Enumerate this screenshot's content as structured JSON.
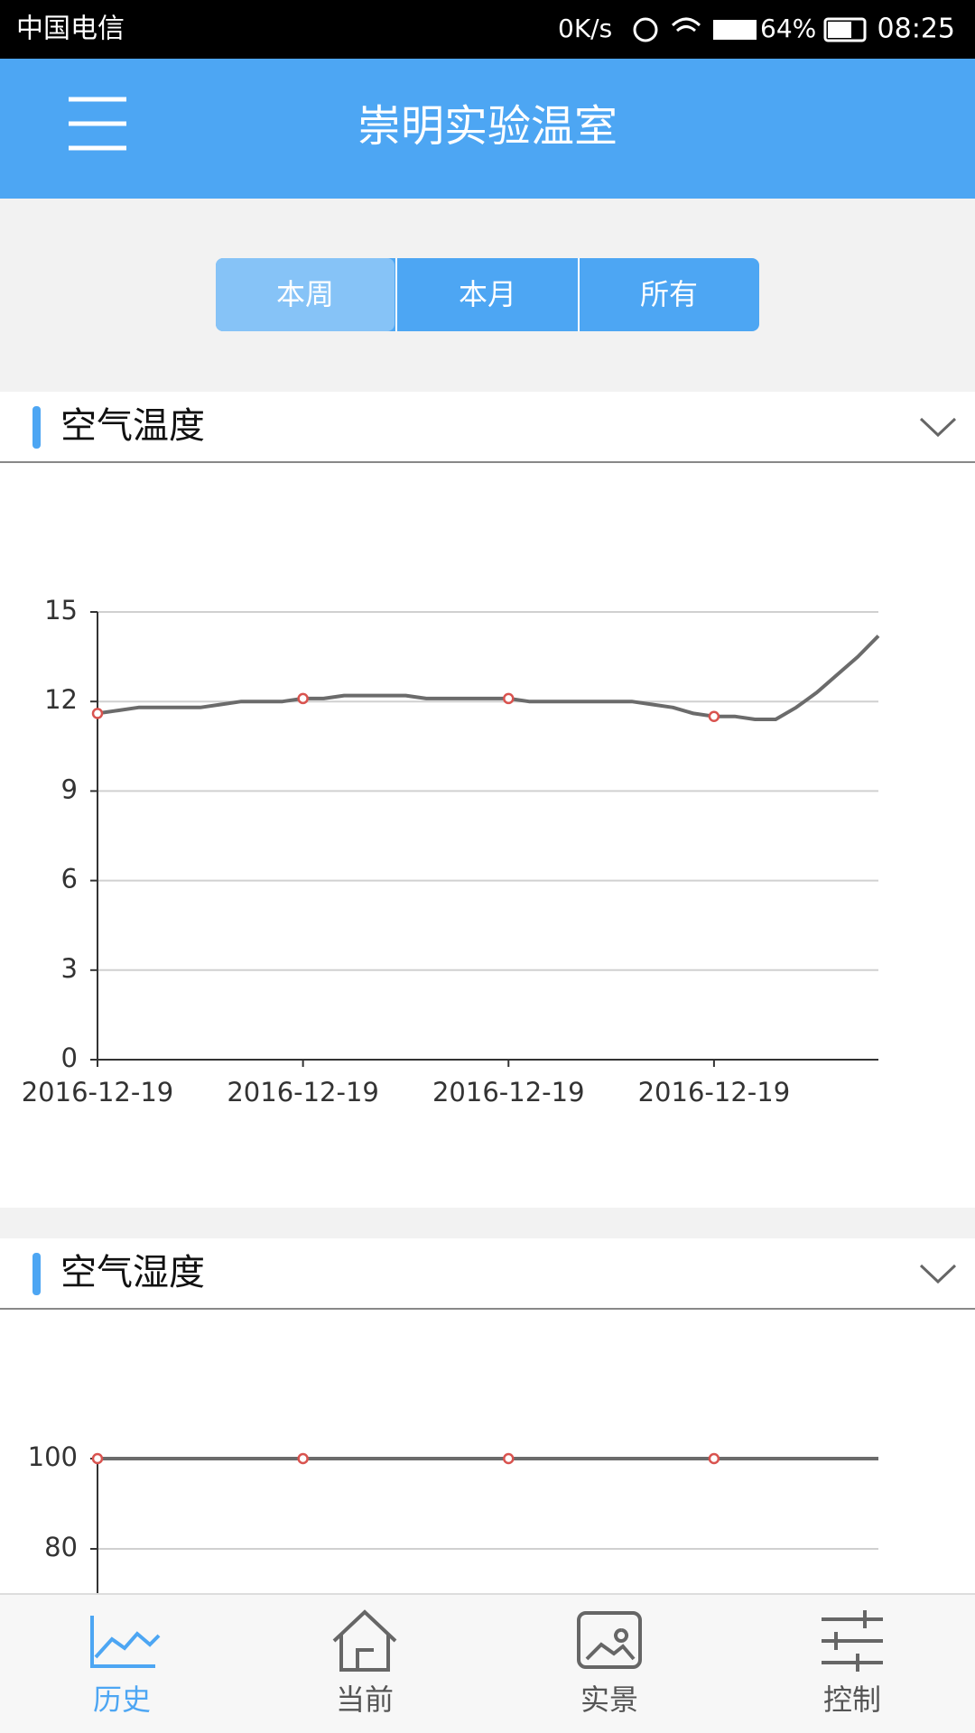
{
  "status_bar": {
    "carrier": "中国电信",
    "speed": "0K/s",
    "battery": "64%",
    "time": "08:25"
  },
  "header": {
    "title": "崇明实验温室"
  },
  "tabs": [
    "本周",
    "本月",
    "所有"
  ],
  "sections": [
    {
      "title": "空气温度",
      "chart": {
        "type": "line",
        "color": "#6b6b6b",
        "marker_color": "#d9534f",
        "categories": [
          "2016-12-19",
          null,
          null,
          null,
          null,
          null,
          null,
          null,
          null,
          null,
          "2016-12-19",
          null,
          null,
          null,
          null,
          null,
          null,
          null,
          null,
          null,
          "2016-12-19",
          null,
          null,
          null,
          null,
          null,
          null,
          null,
          null,
          null,
          "2016-12-19",
          null,
          null,
          null,
          null,
          null,
          null,
          null,
          null
        ],
        "values": [
          11.6,
          11.7,
          11.8,
          11.8,
          11.8,
          11.8,
          11.9,
          12.0,
          12.0,
          12.0,
          12.1,
          12.1,
          12.2,
          12.2,
          12.2,
          12.2,
          12.1,
          12.1,
          12.1,
          12.1,
          12.1,
          12.0,
          12.0,
          12.0,
          12.0,
          12.0,
          12.0,
          11.9,
          11.8,
          11.6,
          11.5,
          11.5,
          11.4,
          11.4,
          11.8,
          12.3,
          12.9,
          13.5,
          14.2
        ],
        "ylim": [
          0,
          15
        ],
        "yticks": [
          0,
          3,
          6,
          9,
          12,
          15
        ],
        "grid": true
      }
    },
    {
      "title": "空气湿度",
      "chart": {
        "type": "line",
        "color": "#6b6b6b",
        "marker_color": "#d9534f",
        "values": [
          100,
          100,
          100,
          100,
          100,
          100,
          100,
          100,
          100,
          100,
          100,
          100,
          100,
          100,
          100,
          100,
          100,
          100,
          100,
          100,
          100,
          100,
          100,
          100,
          100,
          100,
          100,
          100,
          100,
          100,
          100,
          100,
          100,
          100,
          100,
          100,
          100,
          100,
          100
        ],
        "ylim": [
          0,
          100
        ],
        "yticks": [
          80,
          100
        ],
        "grid": true
      }
    }
  ],
  "nav": [
    "历史",
    "当前",
    "实景",
    "控制"
  ]
}
